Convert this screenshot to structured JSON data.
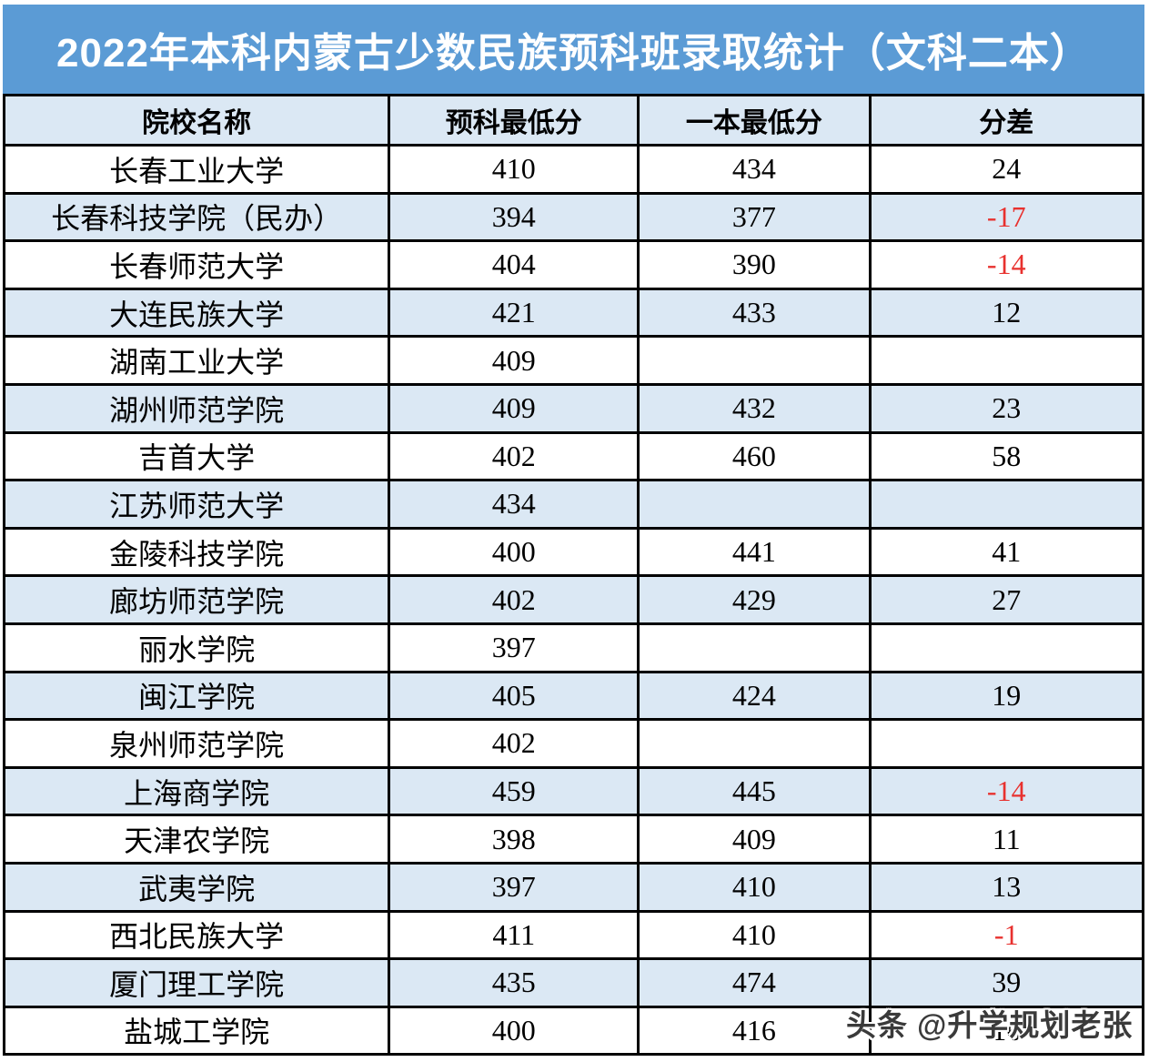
{
  "header": {
    "title": "2022年本科内蒙古少数民族预科班录取统计（文科二本）"
  },
  "watermark": {
    "text": "头条 @升学规划老张"
  },
  "colors": {
    "title_bg": "#5b9bd5",
    "title_text": "#ffffff",
    "band_bg": "#dbe8f4",
    "row_bg": "#ffffff",
    "border": "#000000",
    "text": "#000000",
    "negative": "#e8312e"
  },
  "chart_data": {
    "type": "table",
    "title": "2022年本科内蒙古少数民族预科班录取统计（文科二本）",
    "columns": [
      "院校名称",
      "预科最低分",
      "一本最低分",
      "分差"
    ],
    "rows": [
      [
        "长春工业大学",
        410,
        434,
        24
      ],
      [
        "长春科技学院（民办）",
        394,
        377,
        -17
      ],
      [
        "长春师范大学",
        404,
        390,
        -14
      ],
      [
        "大连民族大学",
        421,
        433,
        12
      ],
      [
        "湖南工业大学",
        409,
        null,
        null
      ],
      [
        "湖州师范学院",
        409,
        432,
        23
      ],
      [
        "吉首大学",
        402,
        460,
        58
      ],
      [
        "江苏师范大学",
        434,
        null,
        null
      ],
      [
        "金陵科技学院",
        400,
        441,
        41
      ],
      [
        "廊坊师范学院",
        402,
        429,
        27
      ],
      [
        "丽水学院",
        397,
        null,
        null
      ],
      [
        "闽江学院",
        405,
        424,
        19
      ],
      [
        "泉州师范学院",
        402,
        null,
        null
      ],
      [
        "上海商学院",
        459,
        445,
        -14
      ],
      [
        "天津农学院",
        398,
        409,
        11
      ],
      [
        "武夷学院",
        397,
        410,
        13
      ],
      [
        "西北民族大学",
        411,
        410,
        -1
      ],
      [
        "厦门理工学院",
        435,
        474,
        39
      ],
      [
        "盐城工学院",
        400,
        416,
        16
      ]
    ],
    "layout_hints": {
      "banding": "alternate rows shaded light blue",
      "negative_values": "shown in red in 分差 column",
      "alignment": "all cells centered"
    }
  }
}
